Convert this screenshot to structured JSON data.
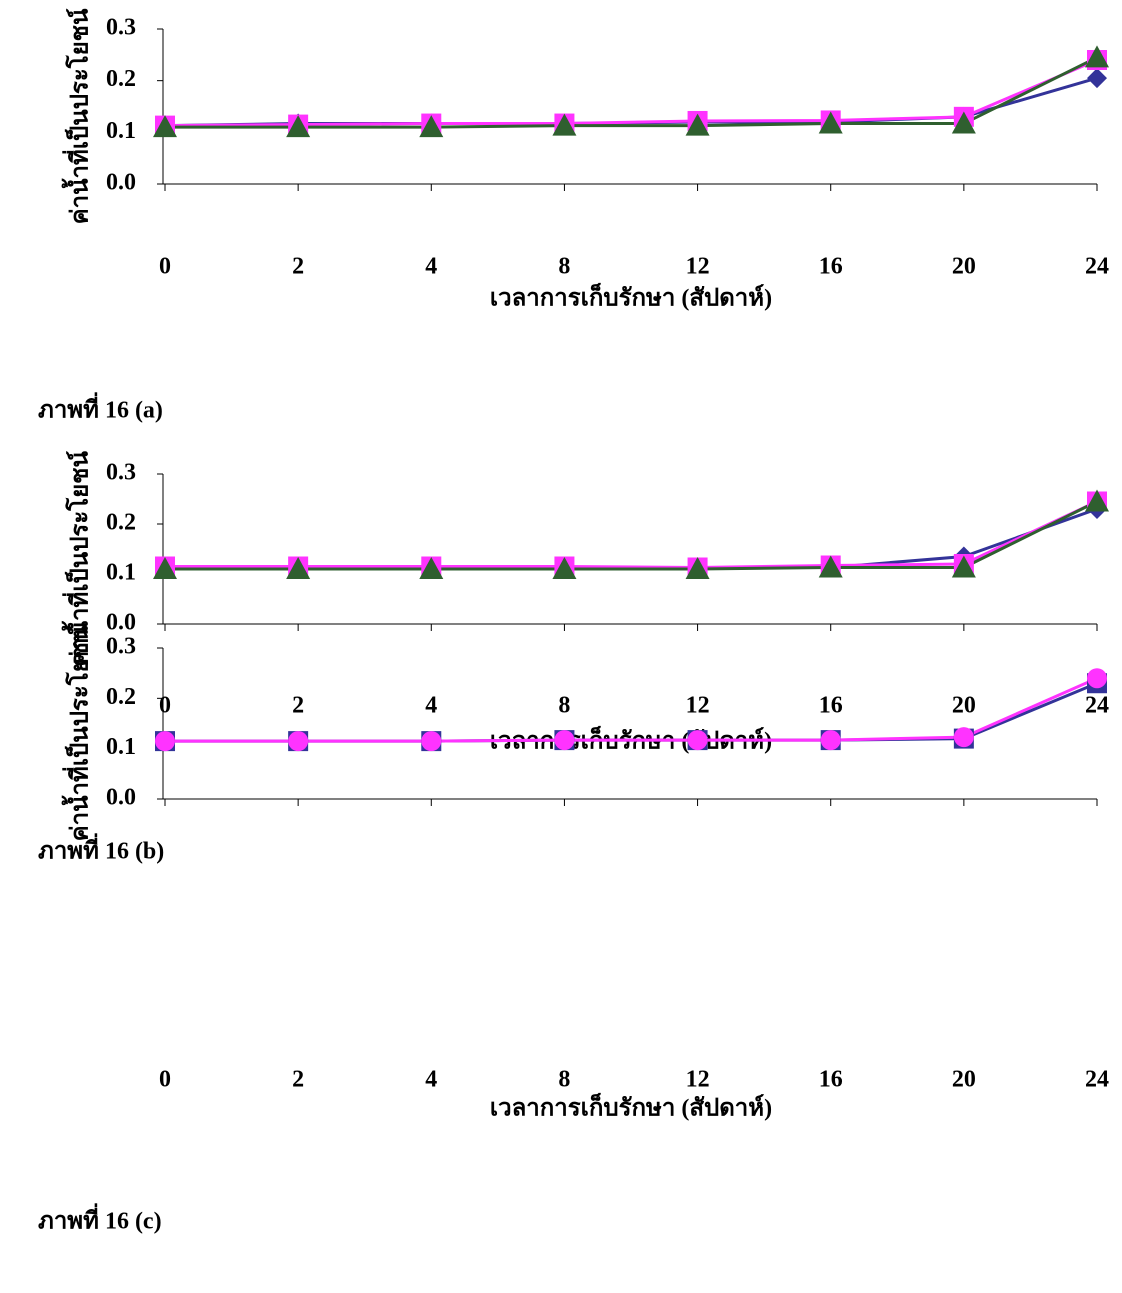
{
  "chart_data": [
    {
      "type": "line",
      "caption": "ภาพที่ 16 (a)",
      "y_label": "ค่าน้ำที่เป็นประโยชน์",
      "x_label": "เวลาการเก็บรักษา (สัปดาห์)",
      "categories": [
        "0",
        "2",
        "4",
        "8",
        "12",
        "16",
        "20",
        "24"
      ],
      "ylim": [
        0,
        0.3
      ],
      "yticks": [
        {
          "value": 0,
          "label": "0.0"
        },
        0.1,
        0.2,
        0.3
      ],
      "series": [
        {
          "color": "#333399",
          "marker": "diamond",
          "values": [
            0.113,
            0.117,
            0.117,
            0.117,
            0.12,
            0.12,
            0.13,
            0.205
          ]
        },
        {
          "color": "#ff33ff",
          "marker": "square",
          "values": [
            0.113,
            0.115,
            0.117,
            0.117,
            0.122,
            0.123,
            0.13,
            0.24
          ]
        },
        {
          "color": "#2f5f2f",
          "marker": "triangle",
          "values": [
            0.11,
            0.11,
            0.11,
            0.113,
            0.113,
            0.117,
            0.117,
            0.245
          ]
        }
      ]
    },
    {
      "type": "line",
      "caption": "ภาพที่ 16 (b)",
      "y_label": "ค่าน้ำที่เป็นประโยชน์",
      "x_label": "เวลาการเก็บรักษา (สัปดาห์)",
      "categories": [
        "0",
        "2",
        "4",
        "8",
        "12",
        "16",
        "20",
        "24"
      ],
      "ylim": [
        0,
        0.3
      ],
      "yticks": [
        {
          "value": 0,
          "label": "0.0"
        },
        0.1,
        0.2,
        0.3
      ],
      "series": [
        {
          "color": "#333399",
          "marker": "diamond",
          "values": [
            0.113,
            0.113,
            0.113,
            0.113,
            0.113,
            0.113,
            0.135,
            0.23
          ]
        },
        {
          "color": "#ff33ff",
          "marker": "square",
          "values": [
            0.115,
            0.115,
            0.115,
            0.115,
            0.113,
            0.117,
            0.12,
            0.245
          ]
        },
        {
          "color": "#2f5f2f",
          "marker": "triangle",
          "values": [
            0.11,
            0.11,
            0.11,
            0.11,
            0.11,
            0.113,
            0.113,
            0.245
          ]
        }
      ]
    },
    {
      "type": "line",
      "caption": "ภาพที่ 16 (c)",
      "y_label": "ค่าน้ำที่เป็นประโยชน์",
      "x_label": "เวลาการเก็บรักษา (สัปดาห์)",
      "categories": [
        "0",
        "2",
        "4",
        "8",
        "12",
        "16",
        "20",
        "24"
      ],
      "ylim": [
        0,
        0.3
      ],
      "yticks": [
        {
          "value": 0,
          "label": "0.0"
        },
        0.1,
        0.2,
        0.3
      ],
      "series": [
        {
          "color": "#333399",
          "marker": "square",
          "values": [
            0.115,
            0.115,
            0.115,
            0.117,
            0.117,
            0.117,
            0.12,
            0.23
          ]
        },
        {
          "color": "#ff33ff",
          "marker": "circle",
          "values": [
            0.115,
            0.115,
            0.115,
            0.117,
            0.117,
            0.117,
            0.123,
            0.24
          ]
        }
      ]
    }
  ]
}
